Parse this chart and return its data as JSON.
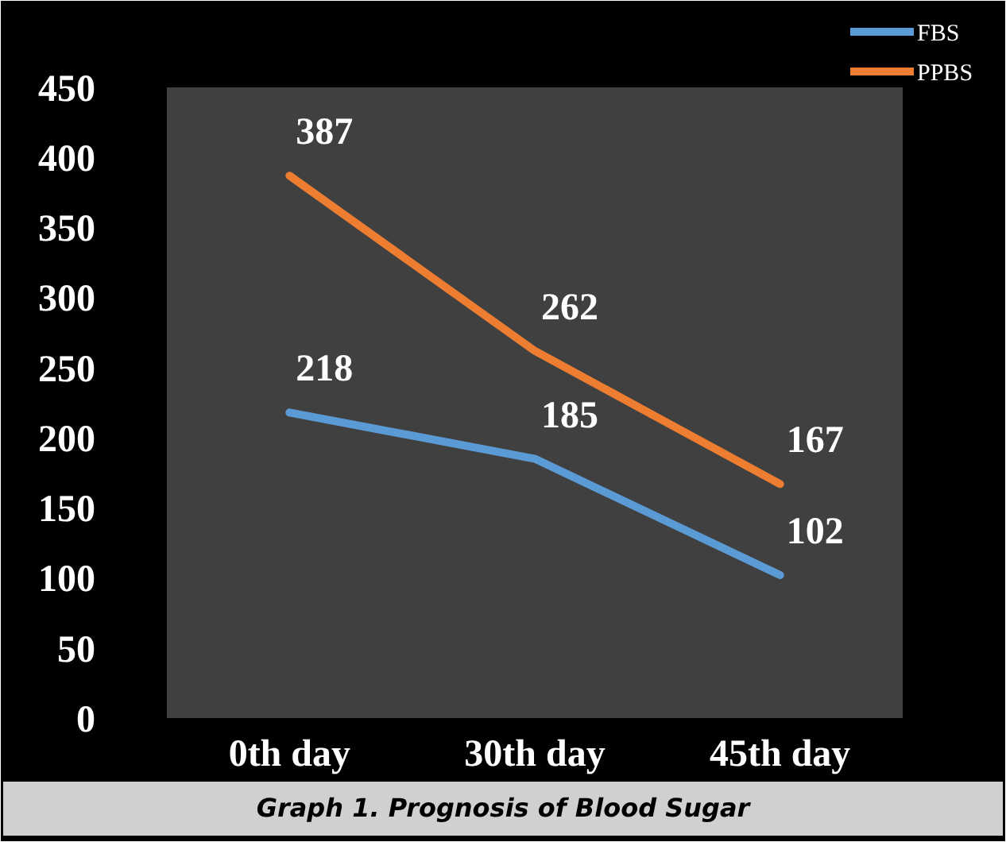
{
  "chart_data": {
    "type": "line",
    "title": "Graph 1. Prognosis of Blood Sugar",
    "categories": [
      "0th day",
      "30th day",
      "45th day"
    ],
    "series": [
      {
        "name": "FBS",
        "color": "#5b9bd5",
        "values": [
          218,
          185,
          102
        ]
      },
      {
        "name": "PPBS",
        "color": "#ed7d31",
        "values": [
          387,
          262,
          167
        ]
      }
    ],
    "ylim": [
      0,
      450
    ],
    "yticks": [
      0,
      50,
      100,
      150,
      200,
      250,
      300,
      350,
      400,
      450
    ],
    "grid": false,
    "legend": "top right",
    "data_labels": true,
    "marker": "none",
    "line_style": "solid"
  }
}
